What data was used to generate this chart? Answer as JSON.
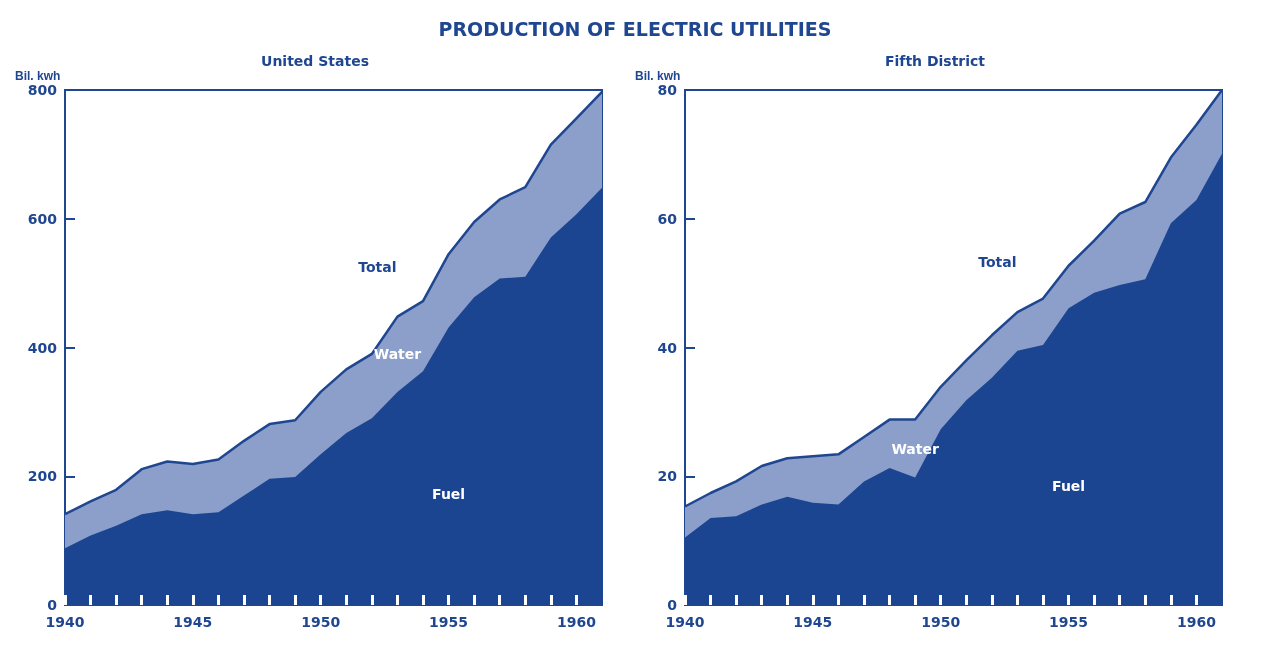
{
  "chart_data": [
    {
      "type": "area",
      "title": "PRODUCTION OF ELECTRIC UTILITIES",
      "subtitle": "United States",
      "ylabel": "Bil. kwh",
      "stacked": true,
      "x": [
        1940,
        1941,
        1942,
        1943,
        1944,
        1945,
        1946,
        1947,
        1948,
        1949,
        1950,
        1951,
        1952,
        1953,
        1954,
        1955,
        1956,
        1957,
        1958,
        1959,
        1960,
        1961
      ],
      "series": [
        {
          "name": "Fuel",
          "color": "#1b4591",
          "values": [
            88,
            108,
            123,
            141,
            147,
            141,
            144,
            170,
            196,
            199,
            234,
            267,
            290,
            331,
            363,
            431,
            478,
            507,
            510,
            571,
            607,
            648
          ]
        },
        {
          "name": "Water",
          "color": "#8b9fca",
          "values": [
            53,
            53,
            56,
            70,
            76,
            78,
            82,
            85,
            85,
            88,
            97,
            99,
            100,
            117,
            109,
            114,
            117,
            123,
            139,
            144,
            149,
            149
          ]
        }
      ],
      "annotations": [
        "Total"
      ],
      "xlim": [
        1940,
        1961
      ],
      "ylim": [
        0,
        800
      ],
      "yticks": [
        0,
        200,
        400,
        600,
        800
      ],
      "xticks": [
        1940,
        {
          "value": 1941,
          "label": null
        },
        {
          "value": 1942,
          "label": null
        },
        {
          "value": 1943,
          "label": null
        },
        {
          "value": 1944,
          "label": null
        },
        1945,
        {
          "value": 1946,
          "label": null
        },
        {
          "value": 1947,
          "label": null
        },
        {
          "value": 1948,
          "label": null
        },
        {
          "value": 1949,
          "label": null
        },
        1950,
        {
          "value": 1951,
          "label": null
        },
        {
          "value": 1952,
          "label": null
        },
        {
          "value": 1953,
          "label": null
        },
        {
          "value": 1954,
          "label": null
        },
        1955,
        {
          "value": 1956,
          "label": null
        },
        {
          "value": 1957,
          "label": null
        },
        {
          "value": 1958,
          "label": null
        },
        {
          "value": 1959,
          "label": null
        },
        1960
      ],
      "grid": false,
      "legend": false
    },
    {
      "type": "area",
      "subtitle": "Fifth District",
      "ylabel": "Bil. kwh",
      "stacked": true,
      "x": [
        1940,
        1941,
        1942,
        1943,
        1944,
        1945,
        1946,
        1947,
        1948,
        1949,
        1950,
        1951,
        1952,
        1953,
        1954,
        1955,
        1956,
        1957,
        1958,
        1959,
        1960,
        1961
      ],
      "series": [
        {
          "name": "Fuel",
          "color": "#1b4591",
          "values": [
            10.5,
            13.5,
            13.8,
            15.6,
            16.8,
            15.9,
            15.6,
            19.2,
            21.3,
            19.8,
            27.3,
            31.8,
            35.3,
            39.5,
            40.4,
            46.1,
            48.5,
            49.7,
            50.6,
            59.3,
            62.9,
            70.1
          ]
        },
        {
          "name": "Water",
          "color": "#8b9fca",
          "values": [
            4.8,
            3.9,
            5.4,
            6.0,
            6.0,
            7.2,
            7.8,
            6.9,
            7.5,
            9.0,
            6.6,
            6.2,
            6.6,
            6.0,
            7.2,
            6.6,
            8.1,
            11.1,
            12.0,
            10.2,
            11.7,
            9.9
          ]
        }
      ],
      "annotations": [
        "Total"
      ],
      "xlim": [
        1940,
        1961
      ],
      "ylim": [
        0,
        80
      ],
      "yticks": [
        0,
        20,
        40,
        60,
        80
      ],
      "xticks": [
        1940,
        {
          "value": 1941,
          "label": null
        },
        {
          "value": 1942,
          "label": null
        },
        {
          "value": 1943,
          "label": null
        },
        {
          "value": 1944,
          "label": null
        },
        1945,
        {
          "value": 1946,
          "label": null
        },
        {
          "value": 1947,
          "label": null
        },
        {
          "value": 1948,
          "label": null
        },
        {
          "value": 1949,
          "label": null
        },
        1950,
        {
          "value": 1951,
          "label": null
        },
        {
          "value": 1952,
          "label": null
        },
        {
          "value": 1953,
          "label": null
        },
        {
          "value": 1954,
          "label": null
        },
        1955,
        {
          "value": 1956,
          "label": null
        },
        {
          "value": 1957,
          "label": null
        },
        {
          "value": 1958,
          "label": null
        },
        {
          "value": 1959,
          "label": null
        },
        1960
      ],
      "grid": false,
      "legend": false
    }
  ]
}
